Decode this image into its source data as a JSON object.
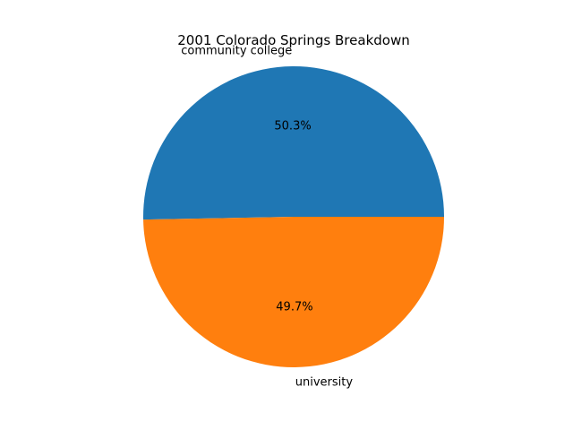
{
  "chart_data": {
    "type": "pie",
    "title": "2001 Colorado Springs Breakdown",
    "categories": [
      "community college",
      "university"
    ],
    "values": [
      50.3,
      49.7
    ],
    "value_labels": [
      "50.3%",
      "49.7%"
    ],
    "colors": [
      "#1f77b4",
      "#ff7f0e"
    ],
    "start_angle_deg": 0,
    "direction": "counterclockwise",
    "legend": "none"
  }
}
